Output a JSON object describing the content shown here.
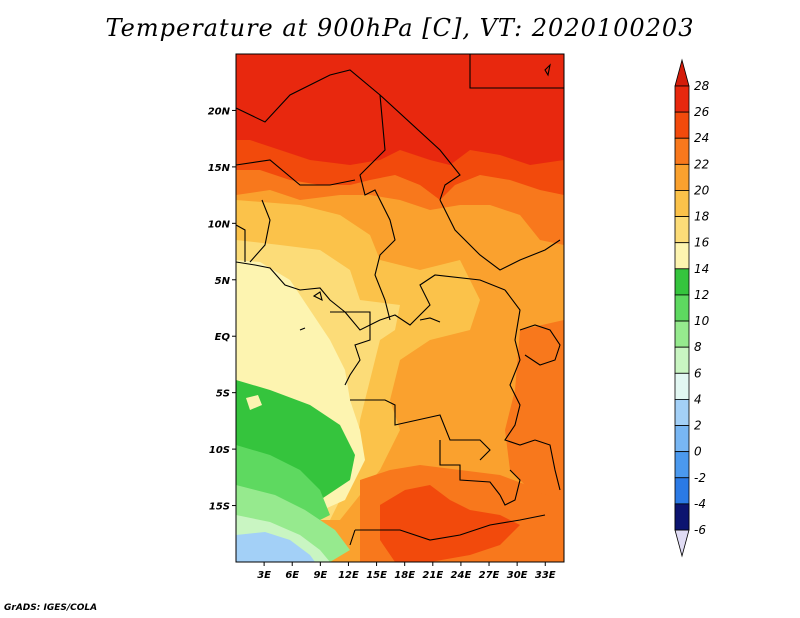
{
  "title": "Temperature at 900hPa [C], VT: 2020100203",
  "credit": "GrADS: IGES/COLA",
  "map": {
    "region": "Central/Southern Africa",
    "field": "temperature",
    "lon_range": [
      0,
      35
    ],
    "lat_range": [
      -20,
      25
    ],
    "lat_ticks": [
      {
        "value": 20,
        "label": "20N"
      },
      {
        "value": 15,
        "label": "15N"
      },
      {
        "value": 10,
        "label": "10N"
      },
      {
        "value": 5,
        "label": "5N"
      },
      {
        "value": 0,
        "label": "EQ"
      },
      {
        "value": -5,
        "label": "5S"
      },
      {
        "value": -10,
        "label": "10S"
      },
      {
        "value": -15,
        "label": "15S"
      }
    ],
    "lon_ticks": [
      {
        "value": 3,
        "label": "3E"
      },
      {
        "value": 6,
        "label": "6E"
      },
      {
        "value": 9,
        "label": "9E"
      },
      {
        "value": 12,
        "label": "12E"
      },
      {
        "value": 15,
        "label": "15E"
      },
      {
        "value": 18,
        "label": "18E"
      },
      {
        "value": 21,
        "label": "21E"
      },
      {
        "value": 24,
        "label": "24E"
      },
      {
        "value": 27,
        "label": "27E"
      },
      {
        "value": 30,
        "label": "30E"
      },
      {
        "value": 33,
        "label": "33E"
      }
    ]
  },
  "colorbar": {
    "levels": [
      {
        "label": "28",
        "color": "#e8280e"
      },
      {
        "label": "26",
        "color": "#f24a0c"
      },
      {
        "label": "24",
        "color": "#f8781c"
      },
      {
        "label": "22",
        "color": "#faa12e"
      },
      {
        "label": "20",
        "color": "#fbc24a"
      },
      {
        "label": "18",
        "color": "#fcdc78"
      },
      {
        "label": "16",
        "color": "#fdf4b0"
      },
      {
        "label": "14",
        "color": "#35c43d"
      },
      {
        "label": "12",
        "color": "#5ed960"
      },
      {
        "label": "10",
        "color": "#96ea8e"
      },
      {
        "label": "8",
        "color": "#c9f5c2"
      },
      {
        "label": "6",
        "color": "#e2f7f2"
      },
      {
        "label": "4",
        "color": "#a3d0f7"
      },
      {
        "label": "2",
        "color": "#78b6f3"
      },
      {
        "label": "0",
        "color": "#4b99ee"
      },
      {
        "label": "-2",
        "color": "#2b7ae5"
      },
      {
        "label": "-4",
        "color": "#1458d5"
      },
      {
        "label": "-6",
        "color": "#0a2fae"
      }
    ],
    "top_arrow_color": "#d41c0a",
    "bottom_arrow_color": "#0c1470",
    "extra_bottom_arrow_color": "#e0dcf4"
  },
  "chart_data": {
    "type": "heatmap",
    "title": "Temperature at 900hPa [C], VT: 2020100203",
    "x_ticks": [
      "3E",
      "6E",
      "9E",
      "12E",
      "15E",
      "18E",
      "21E",
      "24E",
      "27E",
      "30E",
      "33E"
    ],
    "y_ticks": [
      "20N",
      "15N",
      "10N",
      "5N",
      "EQ",
      "5S",
      "10S",
      "15S"
    ],
    "xlim": [
      0,
      35
    ],
    "ylim": [
      -20,
      25
    ],
    "color_scale": [
      -6,
      -4,
      -2,
      0,
      2,
      4,
      6,
      8,
      10,
      12,
      14,
      16,
      18,
      20,
      22,
      24,
      26,
      28
    ]
  }
}
